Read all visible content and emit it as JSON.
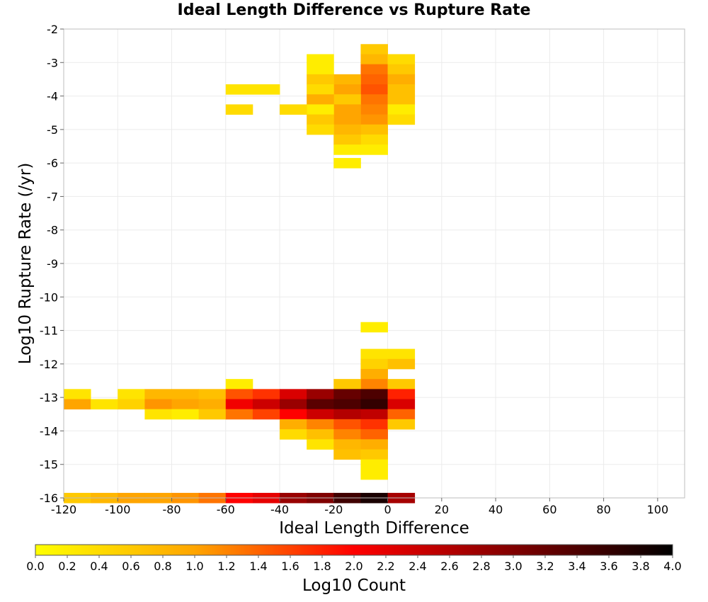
{
  "chart_data": {
    "type": "heatmap",
    "title": "Ideal Length Difference vs Rupture Rate",
    "xlabel": "Ideal Length Difference",
    "ylabel": "Log10 Rupture Rate (/yr)",
    "xlim": [
      -120,
      110
    ],
    "ylim": [
      -16,
      -2
    ],
    "x_ticks": [
      "-120",
      "-100",
      "-80",
      "-60",
      "-40",
      "-20",
      "0",
      "20",
      "40",
      "60",
      "80",
      "100"
    ],
    "y_ticks": [
      "-2",
      "-3",
      "-4",
      "-5",
      "-6",
      "-7",
      "-8",
      "-9",
      "-10",
      "-11",
      "-12",
      "-13",
      "-14",
      "-15",
      "-16"
    ],
    "bin_width_x": 10,
    "bin_height_y": 0.3,
    "grid": true,
    "colorscale": {
      "label": "Log10 Count",
      "min": 0.0,
      "max": 4.0,
      "stops": [
        "#ffff00",
        "#ffa500",
        "#ff0000",
        "#800000",
        "#000000"
      ],
      "ticks": [
        "0.0",
        "0.2",
        "0.4",
        "0.6",
        "0.8",
        "1.0",
        "1.2",
        "1.4",
        "1.6",
        "1.8",
        "2.0",
        "2.2",
        "2.4",
        "2.6",
        "2.8",
        "3.0",
        "3.2",
        "3.4",
        "3.6",
        "3.8",
        "4.0"
      ]
    },
    "cells": [
      {
        "x": -5,
        "y": -2.6,
        "v": 0.6
      },
      {
        "x": -5,
        "y": -2.9,
        "v": 0.8
      },
      {
        "x": -5,
        "y": -3.2,
        "v": 1.3
      },
      {
        "x": -5,
        "y": -3.5,
        "v": 1.4
      },
      {
        "x": -5,
        "y": -3.8,
        "v": 1.5
      },
      {
        "x": -5,
        "y": -4.1,
        "v": 1.3
      },
      {
        "x": -5,
        "y": -4.4,
        "v": 1.2
      },
      {
        "x": -5,
        "y": -4.7,
        "v": 1.1
      },
      {
        "x": -5,
        "y": -5.0,
        "v": 0.7
      },
      {
        "x": -5,
        "y": -5.3,
        "v": 0.4
      },
      {
        "x": -5,
        "y": -5.6,
        "v": 0.2
      },
      {
        "x": 5,
        "y": -2.9,
        "v": 0.4
      },
      {
        "x": 5,
        "y": -3.2,
        "v": 0.6
      },
      {
        "x": 5,
        "y": -3.5,
        "v": 0.9
      },
      {
        "x": 5,
        "y": -3.8,
        "v": 0.7
      },
      {
        "x": 5,
        "y": -4.1,
        "v": 0.7
      },
      {
        "x": 5,
        "y": -4.4,
        "v": 0.2
      },
      {
        "x": 5,
        "y": -4.7,
        "v": 0.4
      },
      {
        "x": -15,
        "y": -3.5,
        "v": 0.8
      },
      {
        "x": -15,
        "y": -3.8,
        "v": 1.0
      },
      {
        "x": -15,
        "y": -4.1,
        "v": 0.6
      },
      {
        "x": -15,
        "y": -4.4,
        "v": 1.0
      },
      {
        "x": -15,
        "y": -4.7,
        "v": 1.0
      },
      {
        "x": -15,
        "y": -5.0,
        "v": 0.8
      },
      {
        "x": -15,
        "y": -5.3,
        "v": 0.6
      },
      {
        "x": -15,
        "y": -5.6,
        "v": 0.2
      },
      {
        "x": -15,
        "y": -6.0,
        "v": 0.2
      },
      {
        "x": -25,
        "y": -2.9,
        "v": 0.2
      },
      {
        "x": -25,
        "y": -3.2,
        "v": 0.2
      },
      {
        "x": -25,
        "y": -3.5,
        "v": 0.6
      },
      {
        "x": -25,
        "y": -3.8,
        "v": 0.4
      },
      {
        "x": -25,
        "y": -4.1,
        "v": 0.9
      },
      {
        "x": -25,
        "y": -4.4,
        "v": 0.2
      },
      {
        "x": -25,
        "y": -4.7,
        "v": 0.6
      },
      {
        "x": -25,
        "y": -5.0,
        "v": 0.4
      },
      {
        "x": -35,
        "y": -4.4,
        "v": 0.4
      },
      {
        "x": -45,
        "y": -3.8,
        "v": 0.3
      },
      {
        "x": -55,
        "y": -3.8,
        "v": 0.3
      },
      {
        "x": -55,
        "y": -4.4,
        "v": 0.4
      },
      {
        "x": -5,
        "y": -10.9,
        "v": 0.2
      },
      {
        "x": -5,
        "y": -11.7,
        "v": 0.3
      },
      {
        "x": 5,
        "y": -11.7,
        "v": 0.3
      },
      {
        "x": -5,
        "y": -12.0,
        "v": 0.5
      },
      {
        "x": 5,
        "y": -12.0,
        "v": 0.7
      },
      {
        "x": -5,
        "y": -12.3,
        "v": 0.9
      },
      {
        "x": -5,
        "y": -12.6,
        "v": 1.2
      },
      {
        "x": 5,
        "y": -12.6,
        "v": 0.6
      },
      {
        "x": -15,
        "y": -12.6,
        "v": 0.6
      },
      {
        "x": -55,
        "y": -12.6,
        "v": 0.2
      },
      {
        "x": -115,
        "y": -12.9,
        "v": 0.3
      },
      {
        "x": -95,
        "y": -12.9,
        "v": 0.3
      },
      {
        "x": -85,
        "y": -12.9,
        "v": 0.8
      },
      {
        "x": -75,
        "y": -12.9,
        "v": 0.8
      },
      {
        "x": -65,
        "y": -12.9,
        "v": 0.7
      },
      {
        "x": -55,
        "y": -12.9,
        "v": 1.5
      },
      {
        "x": -45,
        "y": -12.9,
        "v": 1.7
      },
      {
        "x": -35,
        "y": -12.9,
        "v": 2.3
      },
      {
        "x": -25,
        "y": -12.9,
        "v": 2.8
      },
      {
        "x": -15,
        "y": -12.9,
        "v": 3.2
      },
      {
        "x": -5,
        "y": -12.9,
        "v": 3.4
      },
      {
        "x": 5,
        "y": -12.9,
        "v": 1.8
      },
      {
        "x": -115,
        "y": -13.2,
        "v": 1.0
      },
      {
        "x": -105,
        "y": -13.2,
        "v": 0.3
      },
      {
        "x": -95,
        "y": -13.2,
        "v": 0.5
      },
      {
        "x": -85,
        "y": -13.2,
        "v": 1.1
      },
      {
        "x": -75,
        "y": -13.2,
        "v": 1.0
      },
      {
        "x": -65,
        "y": -13.2,
        "v": 0.9
      },
      {
        "x": -55,
        "y": -13.2,
        "v": 2.1
      },
      {
        "x": -45,
        "y": -13.2,
        "v": 2.4
      },
      {
        "x": -35,
        "y": -13.2,
        "v": 2.8
      },
      {
        "x": -25,
        "y": -13.2,
        "v": 3.3
      },
      {
        "x": -15,
        "y": -13.2,
        "v": 3.4
      },
      {
        "x": -5,
        "y": -13.2,
        "v": 3.6
      },
      {
        "x": 5,
        "y": -13.2,
        "v": 2.3
      },
      {
        "x": -85,
        "y": -13.5,
        "v": 0.3
      },
      {
        "x": -75,
        "y": -13.5,
        "v": 0.2
      },
      {
        "x": -65,
        "y": -13.5,
        "v": 0.6
      },
      {
        "x": -55,
        "y": -13.5,
        "v": 1.3
      },
      {
        "x": -45,
        "y": -13.5,
        "v": 1.6
      },
      {
        "x": -35,
        "y": -13.5,
        "v": 2.0
      },
      {
        "x": -25,
        "y": -13.5,
        "v": 2.4
      },
      {
        "x": -15,
        "y": -13.5,
        "v": 2.6
      },
      {
        "x": -5,
        "y": -13.5,
        "v": 2.5
      },
      {
        "x": 5,
        "y": -13.5,
        "v": 1.4
      },
      {
        "x": -35,
        "y": -13.8,
        "v": 0.9
      },
      {
        "x": -25,
        "y": -13.8,
        "v": 1.2
      },
      {
        "x": -15,
        "y": -13.8,
        "v": 1.5
      },
      {
        "x": -5,
        "y": -13.8,
        "v": 1.7
      },
      {
        "x": 5,
        "y": -13.8,
        "v": 0.6
      },
      {
        "x": -35,
        "y": -14.1,
        "v": 0.4
      },
      {
        "x": -25,
        "y": -14.1,
        "v": 0.7
      },
      {
        "x": -15,
        "y": -14.1,
        "v": 1.2
      },
      {
        "x": -5,
        "y": -14.1,
        "v": 1.4
      },
      {
        "x": -25,
        "y": -14.4,
        "v": 0.3
      },
      {
        "x": -15,
        "y": -14.4,
        "v": 0.8
      },
      {
        "x": -5,
        "y": -14.4,
        "v": 0.9
      },
      {
        "x": -15,
        "y": -14.7,
        "v": 0.7
      },
      {
        "x": -5,
        "y": -14.7,
        "v": 0.6
      },
      {
        "x": -5,
        "y": -15.0,
        "v": 0.2
      },
      {
        "x": -5,
        "y": -15.3,
        "v": 0.2
      },
      {
        "x": -115,
        "y": -16.0,
        "v": 0.6
      },
      {
        "x": -105,
        "y": -16.0,
        "v": 0.8
      },
      {
        "x": -95,
        "y": -16.0,
        "v": 1.0
      },
      {
        "x": -85,
        "y": -16.0,
        "v": 1.0
      },
      {
        "x": -75,
        "y": -16.0,
        "v": 1.1
      },
      {
        "x": -65,
        "y": -16.0,
        "v": 1.3
      },
      {
        "x": -55,
        "y": -16.0,
        "v": 2.0
      },
      {
        "x": -45,
        "y": -16.0,
        "v": 2.2
      },
      {
        "x": -35,
        "y": -16.0,
        "v": 2.8
      },
      {
        "x": -25,
        "y": -16.0,
        "v": 3.0
      },
      {
        "x": -15,
        "y": -16.0,
        "v": 3.5
      },
      {
        "x": -5,
        "y": -16.0,
        "v": 3.8
      },
      {
        "x": 5,
        "y": -16.0,
        "v": 2.7
      }
    ]
  }
}
